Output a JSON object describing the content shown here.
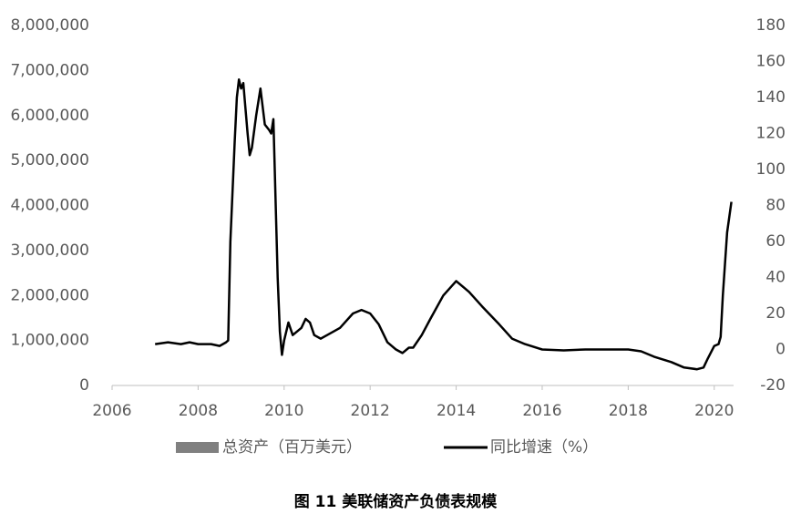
{
  "chart_data": {
    "type": "line",
    "title": "图 11    美联储资产负债表规模",
    "x": [
      2007.0,
      2007.3,
      2007.6,
      2007.8,
      2008.0,
      2008.3,
      2008.5,
      2008.65,
      2008.7,
      2008.75,
      2008.85,
      2008.9,
      2008.95,
      2009.0,
      2009.05,
      2009.15,
      2009.2,
      2009.25,
      2009.35,
      2009.45,
      2009.55,
      2009.65,
      2009.7,
      2009.75,
      2009.85,
      2009.9,
      2009.95,
      2010.0,
      2010.1,
      2010.2,
      2010.3,
      2010.4,
      2010.5,
      2010.6,
      2010.7,
      2010.85,
      2011.0,
      2011.3,
      2011.6,
      2011.8,
      2012.0,
      2012.2,
      2012.4,
      2012.6,
      2012.75,
      2012.9,
      2013.0,
      2013.2,
      2013.4,
      2013.7,
      2014.0,
      2014.3,
      2014.6,
      2015.0,
      2015.3,
      2015.6,
      2016.0,
      2016.5,
      2017.0,
      2017.5,
      2018.0,
      2018.3,
      2018.6,
      2019.0,
      2019.3,
      2019.6,
      2019.75,
      2019.85,
      2020.0,
      2020.1,
      2020.15,
      2020.2,
      2020.3,
      2020.4
    ],
    "series": [
      {
        "name": "总资产（百万美元）",
        "color": "#808080",
        "values": [
          null,
          null,
          null,
          null,
          null,
          null,
          null,
          null,
          null,
          null,
          null,
          null,
          null,
          null,
          null,
          null,
          null,
          null,
          null,
          null,
          null,
          null,
          null,
          null,
          null,
          null,
          null,
          null,
          null,
          null,
          null,
          null,
          null,
          null,
          null,
          null,
          null,
          null,
          null,
          null,
          null,
          null,
          null,
          null,
          null,
          null,
          null,
          null,
          null,
          null,
          null,
          null,
          null,
          null,
          null,
          null,
          null,
          null,
          null,
          null,
          null,
          null,
          null,
          null,
          null,
          null,
          null,
          null,
          null,
          null,
          null,
          null,
          null,
          null
        ]
      },
      {
        "name": "同比增速（%）",
        "color": "#000000",
        "axis": "y2",
        "values": [
          3,
          4,
          3,
          4,
          3,
          3,
          2,
          4,
          5,
          60,
          115,
          140,
          150,
          145,
          148,
          120,
          108,
          112,
          130,
          145,
          125,
          122,
          120,
          128,
          40,
          10,
          -3,
          5,
          15,
          8,
          10,
          12,
          17,
          15,
          8,
          6,
          8,
          12,
          20,
          22,
          20,
          14,
          4,
          0,
          -2,
          1,
          1,
          8,
          17,
          30,
          38,
          32,
          24,
          14,
          6,
          3,
          0,
          -0.5,
          0,
          0,
          0,
          -1,
          -4,
          -7,
          -10,
          -11,
          -10,
          -5,
          2,
          3,
          7,
          30,
          65,
          82
        ]
      }
    ],
    "xlim": [
      2006,
      2020.45
    ],
    "xticks": [
      2006,
      2008,
      2010,
      2012,
      2014,
      2016,
      2018,
      2020
    ],
    "ylim": [
      0,
      8000000
    ],
    "yticks": [
      0,
      {
        "value": 1000000,
        "label": "1,000,000"
      },
      {
        "value": 2000000,
        "label": "2,000,000"
      },
      {
        "value": 3000000,
        "label": "3,000,000"
      },
      {
        "value": 4000000,
        "label": "4,000,000"
      },
      {
        "value": 5000000,
        "label": "5,000,000"
      },
      {
        "value": 6000000,
        "label": "6,000,000"
      },
      {
        "value": 7000000,
        "label": "7,000,000"
      },
      {
        "value": 8000000,
        "label": "8,000,000"
      }
    ],
    "y2lim": [
      -20,
      180
    ],
    "y2ticks": [
      -20,
      0,
      20,
      40,
      60,
      80,
      100,
      120,
      140,
      160,
      180
    ]
  }
}
